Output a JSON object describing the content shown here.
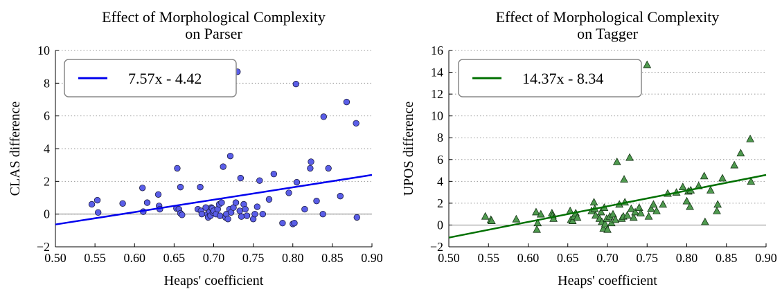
{
  "chart_data": [
    {
      "type": "scatter",
      "title_lines": [
        "Effect of Morphological Complexity",
        "on Parser"
      ],
      "xlabel": "Heaps' coefficient",
      "ylabel": "CLAS difference",
      "xlim": [
        0.5,
        0.9
      ],
      "ylim": [
        -2,
        10
      ],
      "xticks": [
        "0.50",
        "0.55",
        "0.60",
        "0.65",
        "0.70",
        "0.75",
        "0.80",
        "0.85",
        "0.90"
      ],
      "xtick_values": [
        0.5,
        0.55,
        0.6,
        0.65,
        0.7,
        0.75,
        0.8,
        0.85,
        0.9
      ],
      "yticks": [
        "−2",
        "0",
        "2",
        "4",
        "6",
        "8",
        "10"
      ],
      "ytick_values": [
        -2,
        0,
        2,
        4,
        6,
        8,
        10
      ],
      "grid": true,
      "legend_position": "top-left",
      "marker": "circle",
      "marker_color": "#5a5ee8",
      "line_color": "#0000ee",
      "fit": {
        "slope": 7.57,
        "intercept": -4.42,
        "label": "7.57x - 4.42"
      },
      "points": [
        [
          0.546,
          0.6
        ],
        [
          0.553,
          0.85
        ],
        [
          0.554,
          0.1
        ],
        [
          0.585,
          0.65
        ],
        [
          0.61,
          1.6
        ],
        [
          0.611,
          0.15
        ],
        [
          0.616,
          0.7
        ],
        [
          0.63,
          1.2
        ],
        [
          0.631,
          0.5
        ],
        [
          0.632,
          0.3
        ],
        [
          0.653,
          0.35
        ],
        [
          0.654,
          2.8
        ],
        [
          0.656,
          0.3
        ],
        [
          0.658,
          1.65
        ],
        [
          0.658,
          0.05
        ],
        [
          0.66,
          -0.05
        ],
        [
          0.68,
          0.3
        ],
        [
          0.683,
          1.65
        ],
        [
          0.684,
          0.2
        ],
        [
          0.685,
          0.0
        ],
        [
          0.69,
          0.4
        ],
        [
          0.692,
          0.0
        ],
        [
          0.693,
          -0.2
        ],
        [
          0.695,
          0.15
        ],
        [
          0.696,
          -0.1
        ],
        [
          0.697,
          0.4
        ],
        [
          0.698,
          0.35
        ],
        [
          0.699,
          0.1
        ],
        [
          0.7,
          0.2
        ],
        [
          0.703,
          0.0
        ],
        [
          0.705,
          0.3
        ],
        [
          0.707,
          0.6
        ],
        [
          0.708,
          -0.1
        ],
        [
          0.71,
          0.7
        ],
        [
          0.712,
          2.9
        ],
        [
          0.715,
          -0.2
        ],
        [
          0.716,
          0.0
        ],
        [
          0.718,
          -0.3
        ],
        [
          0.72,
          0.3
        ],
        [
          0.721,
          3.55
        ],
        [
          0.722,
          0.1
        ],
        [
          0.725,
          0.4
        ],
        [
          0.728,
          0.7
        ],
        [
          0.73,
          8.7
        ],
        [
          0.733,
          0.2
        ],
        [
          0.734,
          2.2
        ],
        [
          0.735,
          -0.15
        ],
        [
          0.738,
          0.6
        ],
        [
          0.74,
          0.3
        ],
        [
          0.742,
          -0.1
        ],
        [
          0.75,
          -0.3
        ],
        [
          0.752,
          0.0
        ],
        [
          0.755,
          0.45
        ],
        [
          0.758,
          2.05
        ],
        [
          0.762,
          0.0
        ],
        [
          0.77,
          0.9
        ],
        [
          0.776,
          2.45
        ],
        [
          0.787,
          -0.55
        ],
        [
          0.795,
          1.3
        ],
        [
          0.8,
          -0.6
        ],
        [
          0.802,
          -0.55
        ],
        [
          0.804,
          7.95
        ],
        [
          0.805,
          1.95
        ],
        [
          0.815,
          0.3
        ],
        [
          0.822,
          2.8
        ],
        [
          0.823,
          3.2
        ],
        [
          0.83,
          0.8
        ],
        [
          0.838,
          0.0
        ],
        [
          0.839,
          5.95
        ],
        [
          0.845,
          2.8
        ],
        [
          0.86,
          1.1
        ],
        [
          0.868,
          6.85
        ],
        [
          0.88,
          5.55
        ],
        [
          0.881,
          -0.2
        ]
      ]
    },
    {
      "type": "scatter",
      "title_lines": [
        "Effect of Morphological Complexity",
        "on Tagger"
      ],
      "xlabel": "Heaps' coefficient",
      "ylabel": "UPOS difference",
      "xlim": [
        0.5,
        0.9
      ],
      "ylim": [
        -2,
        16
      ],
      "xticks": [
        "0.50",
        "0.55",
        "0.60",
        "0.65",
        "0.70",
        "0.75",
        "0.80",
        "0.85",
        "0.90"
      ],
      "xtick_values": [
        0.5,
        0.55,
        0.6,
        0.65,
        0.7,
        0.75,
        0.8,
        0.85,
        0.9
      ],
      "yticks": [
        "−2",
        "0",
        "2",
        "4",
        "6",
        "8",
        "10",
        "12",
        "14",
        "16"
      ],
      "ytick_values": [
        -2,
        0,
        2,
        4,
        6,
        8,
        10,
        12,
        14,
        16
      ],
      "grid": true,
      "legend_position": "top-left",
      "marker": "triangle",
      "marker_color": "#4f9a4f",
      "line_color": "#007000",
      "fit": {
        "slope": 14.37,
        "intercept": -8.34,
        "label": "14.37x - 8.34"
      },
      "points": [
        [
          0.546,
          0.8
        ],
        [
          0.553,
          0.5
        ],
        [
          0.554,
          0.4
        ],
        [
          0.585,
          0.55
        ],
        [
          0.61,
          1.2
        ],
        [
          0.611,
          -0.4
        ],
        [
          0.612,
          0.2
        ],
        [
          0.616,
          1.0
        ],
        [
          0.63,
          1.1
        ],
        [
          0.631,
          0.9
        ],
        [
          0.632,
          0.6
        ],
        [
          0.653,
          1.3
        ],
        [
          0.654,
          0.5
        ],
        [
          0.656,
          0.4
        ],
        [
          0.658,
          0.8
        ],
        [
          0.66,
          1.1
        ],
        [
          0.662,
          0.7
        ],
        [
          0.68,
          1.3
        ],
        [
          0.683,
          2.1
        ],
        [
          0.684,
          1.5
        ],
        [
          0.685,
          0.9
        ],
        [
          0.69,
          0.6
        ],
        [
          0.692,
          1.2
        ],
        [
          0.693,
          0.3
        ],
        [
          0.695,
          -0.3
        ],
        [
          0.696,
          1.6
        ],
        [
          0.697,
          0.1
        ],
        [
          0.699,
          0.6
        ],
        [
          0.7,
          -0.4
        ],
        [
          0.703,
          0.8
        ],
        [
          0.705,
          0.2
        ],
        [
          0.707,
          1.0
        ],
        [
          0.71,
          0.5
        ],
        [
          0.712,
          5.8
        ],
        [
          0.715,
          1.9
        ],
        [
          0.718,
          0.6
        ],
        [
          0.72,
          0.8
        ],
        [
          0.721,
          4.2
        ],
        [
          0.722,
          2.1
        ],
        [
          0.725,
          0.9
        ],
        [
          0.728,
          6.2
        ],
        [
          0.73,
          1.5
        ],
        [
          0.733,
          0.7
        ],
        [
          0.735,
          1.2
        ],
        [
          0.74,
          1.6
        ],
        [
          0.742,
          1.1
        ],
        [
          0.75,
          14.7
        ],
        [
          0.752,
          0.8
        ],
        [
          0.755,
          1.5
        ],
        [
          0.758,
          1.9
        ],
        [
          0.762,
          1.3
        ],
        [
          0.77,
          1.9
        ],
        [
          0.776,
          2.9
        ],
        [
          0.787,
          3.0
        ],
        [
          0.795,
          3.5
        ],
        [
          0.8,
          2.2
        ],
        [
          0.802,
          3.1
        ],
        [
          0.804,
          1.7
        ],
        [
          0.805,
          3.2
        ],
        [
          0.815,
          3.6
        ],
        [
          0.822,
          4.5
        ],
        [
          0.823,
          0.3
        ],
        [
          0.83,
          3.2
        ],
        [
          0.838,
          1.3
        ],
        [
          0.839,
          1.9
        ],
        [
          0.845,
          4.3
        ],
        [
          0.86,
          5.5
        ],
        [
          0.868,
          6.6
        ],
        [
          0.88,
          7.9
        ],
        [
          0.881,
          4.0
        ]
      ]
    }
  ]
}
